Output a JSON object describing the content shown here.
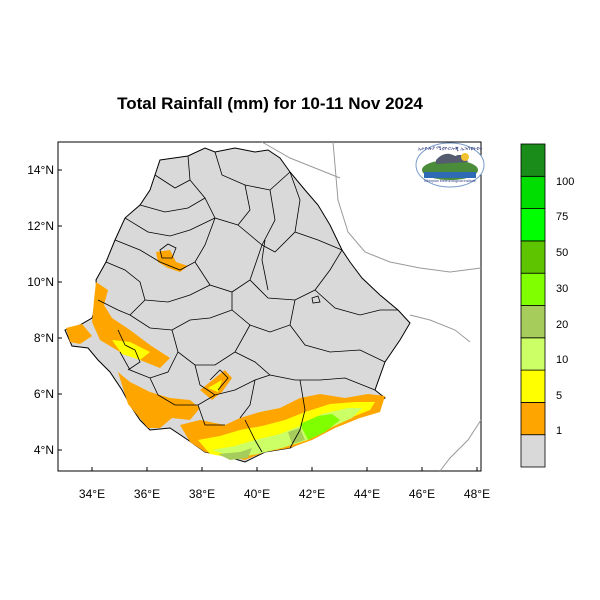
{
  "title": "Total Rainfall (mm) for 10-11 Nov 2024",
  "axes": {
    "x_ticks": [
      "34°E",
      "36°E",
      "38°E",
      "40°E",
      "42°E",
      "44°E",
      "46°E",
      "48°E"
    ],
    "y_ticks": [
      "14°N",
      "12°N",
      "10°N",
      "8°N",
      "6°N",
      "4°N"
    ]
  },
  "legend": {
    "labels": [
      "1",
      "5",
      "10",
      "20",
      "30",
      "50",
      "75",
      "100"
    ],
    "colors": [
      "#d9d9d9",
      "#ffa500",
      "#ffff00",
      "#ccff66",
      "#a6cc5c",
      "#80ff00",
      "#5ec400",
      "#00ff00",
      "#00dd00",
      "#1a8c1a"
    ]
  },
  "colors": {
    "land": "#d9d9d9",
    "orange": "#ffa500",
    "yellow": "#ffff00",
    "light_green": "#ccff66",
    "olive": "#a6cc5c",
    "bright_green": "#80ff00"
  },
  "logo": {
    "text": "Ethiopian Meteorological Institute"
  }
}
